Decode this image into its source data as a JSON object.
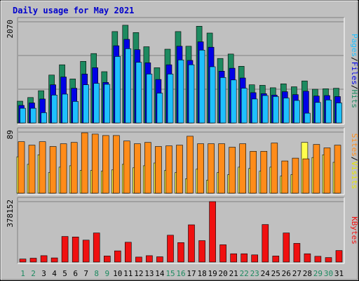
{
  "chart_data": [
    {
      "type": "bar",
      "title": "Daily usage for May 2021",
      "panel": "hits-files-pages",
      "categories": [
        "1",
        "2",
        "3",
        "4",
        "5",
        "6",
        "7",
        "8",
        "9",
        "10",
        "11",
        "12",
        "13",
        "14",
        "15",
        "16",
        "17",
        "18",
        "19",
        "20",
        "21",
        "22",
        "23",
        "24",
        "25",
        "26",
        "27",
        "28",
        "29",
        "30",
        "31"
      ],
      "weekend_days": [
        "1",
        "2",
        "8",
        "9",
        "15",
        "16",
        "22",
        "23",
        "29",
        "30"
      ],
      "ymax_label": "2070",
      "ylim": [
        0,
        2070
      ],
      "side_label": [
        "Pages",
        "Files",
        "Hits"
      ],
      "series": [
        {
          "name": "Hits",
          "color": "#1d8a60",
          "values": [
            445,
            520,
            660,
            980,
            1190,
            900,
            1260,
            1420,
            1050,
            1870,
            2000,
            1850,
            1560,
            1130,
            1510,
            1870,
            1570,
            1980,
            1840,
            1320,
            1410,
            1160,
            780,
            770,
            720,
            800,
            740,
            860,
            690,
            700,
            710
          ]
        },
        {
          "name": "Files",
          "color": "#0000e6",
          "values": [
            360,
            410,
            490,
            780,
            940,
            710,
            1000,
            1130,
            830,
            1580,
            1710,
            1500,
            1230,
            890,
            1190,
            1570,
            1280,
            1660,
            1550,
            1060,
            1120,
            920,
            620,
            600,
            570,
            640,
            580,
            650,
            550,
            560,
            540
          ]
        },
        {
          "name": "Pages",
          "color": "#1ec0ff",
          "values": [
            300,
            300,
            210,
            570,
            590,
            440,
            780,
            810,
            790,
            1360,
            1520,
            1240,
            1000,
            610,
            1000,
            1290,
            1190,
            1490,
            1150,
            930,
            880,
            710,
            490,
            560,
            540,
            510,
            460,
            200,
            420,
            470,
            410
          ]
        }
      ]
    },
    {
      "type": "bar",
      "panel": "sites-visits",
      "categories": [
        "1",
        "2",
        "3",
        "4",
        "5",
        "6",
        "7",
        "8",
        "9",
        "10",
        "11",
        "12",
        "13",
        "14",
        "15",
        "16",
        "17",
        "18",
        "19",
        "20",
        "21",
        "22",
        "23",
        "24",
        "25",
        "26",
        "27",
        "28",
        "29",
        "30",
        "31"
      ],
      "ymax_label": "89",
      "ylim": [
        0,
        89
      ],
      "side_label": [
        "Sites",
        "Visits"
      ],
      "series": [
        {
          "name": "Visits",
          "color": "#ffff4d",
          "values": [
            53,
            42,
            56,
            30,
            38,
            40,
            33,
            33,
            32,
            34,
            42,
            37,
            40,
            44,
            33,
            30,
            21,
            35,
            19,
            30,
            27,
            38,
            36,
            32,
            38,
            25,
            27,
            74,
            52,
            56,
            45
          ]
        },
        {
          "name": "Sites",
          "color": "#ff8c1a",
          "values": [
            75,
            70,
            75,
            68,
            72,
            74,
            88,
            86,
            84,
            84,
            76,
            72,
            74,
            68,
            69,
            70,
            83,
            72,
            72,
            72,
            67,
            72,
            61,
            61,
            73,
            47,
            51,
            50,
            71,
            66,
            70
          ]
        }
      ]
    },
    {
      "type": "bar",
      "panel": "kbytes",
      "categories": [
        "1",
        "2",
        "3",
        "4",
        "5",
        "6",
        "7",
        "8",
        "9",
        "10",
        "11",
        "12",
        "13",
        "14",
        "15",
        "16",
        "17",
        "18",
        "19",
        "20",
        "21",
        "22",
        "23",
        "24",
        "25",
        "26",
        "27",
        "28",
        "29",
        "30",
        "31"
      ],
      "ymax_label": "378152",
      "ylim": [
        0,
        378152
      ],
      "side_label": [
        "KBytes"
      ],
      "series": [
        {
          "name": "KBytes",
          "color": "#f01010",
          "values": [
            19000,
            24000,
            40000,
            26000,
            160000,
            157000,
            137000,
            182000,
            38000,
            70000,
            124000,
            31000,
            40000,
            33000,
            168000,
            122000,
            233000,
            134000,
            378152,
            108000,
            52000,
            52000,
            45000,
            235000,
            38000,
            182000,
            117000,
            52000,
            36000,
            28000,
            72000
          ]
        }
      ]
    }
  ]
}
